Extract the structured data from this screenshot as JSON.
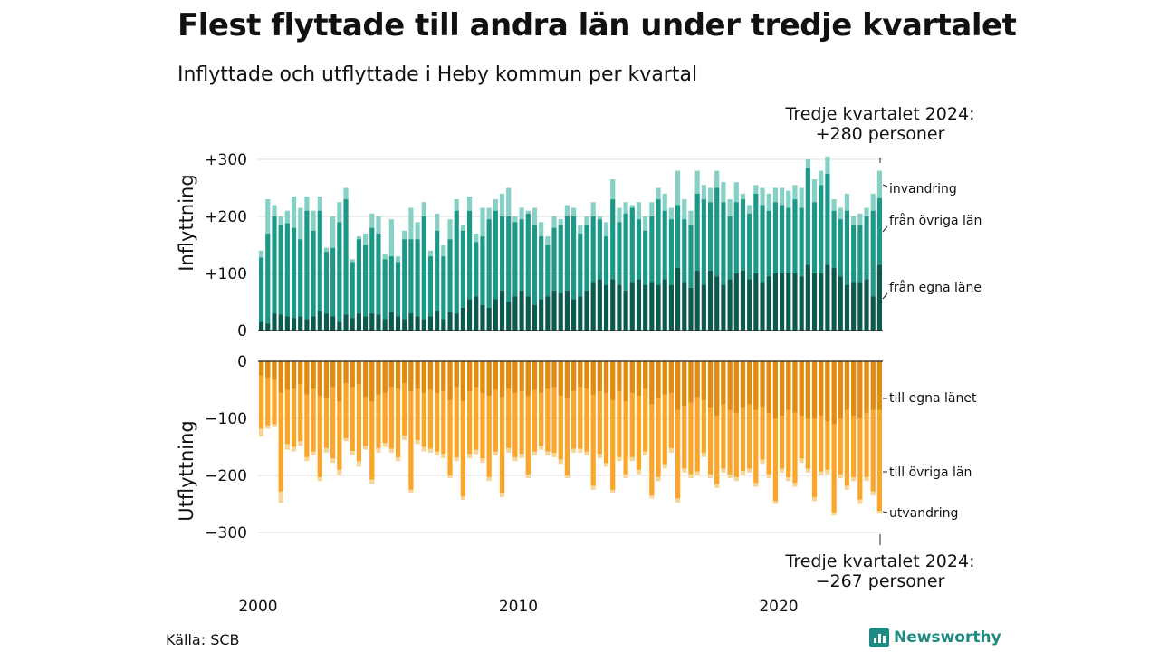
{
  "header": {
    "title": "Flest flyttade till andra län under tredje kvartalet",
    "subtitle": "Inflyttade och utflyttade i Heby kommun per kvartal"
  },
  "footer": {
    "source": "Källa: SCB",
    "brand": "Newsworthy"
  },
  "callouts": {
    "top_line1": "Tredje kvartalet 2024:",
    "top_line2": "+280 personer",
    "bottom_line1": "Tredje kvartalet 2024:",
    "bottom_line2": "−267 personer"
  },
  "chart_data": {
    "type": "bar",
    "subtype": "stacked-diverging",
    "start_year": 2000,
    "colors": {
      "in_egna": "#0c5a4e",
      "in_ovriga": "#1c9889",
      "in_invandring": "#86d0c5",
      "out_egna": "#e08c10",
      "out_ovriga": "#f9a62a",
      "out_utvandring": "#f7d497",
      "grid": "#dddddd",
      "axis": "#222222"
    },
    "x_ticks": [
      {
        "label": "2000",
        "year": 2000
      },
      {
        "label": "2010",
        "year": 2010
      },
      {
        "label": "2020",
        "year": 2020
      }
    ],
    "top_panel": {
      "ylabel": "Inflyttning",
      "ylim": [
        0,
        300
      ],
      "y_ticks": [
        {
          "value": 0,
          "label": "0"
        },
        {
          "value": 100,
          "label": "+100"
        },
        {
          "value": 200,
          "label": "+200"
        },
        {
          "value": 300,
          "label": "+300"
        }
      ],
      "series_labels": [
        "från egna läne",
        "från övriga län",
        "invandring"
      ]
    },
    "bottom_panel": {
      "ylabel": "Utflyttning",
      "ylim": [
        -300,
        0
      ],
      "y_ticks": [
        {
          "value": 0,
          "label": "0"
        },
        {
          "value": -100,
          "label": "−100"
        },
        {
          "value": -200,
          "label": "−200"
        },
        {
          "value": -300,
          "label": "−300"
        }
      ],
      "series_labels": [
        "till egna länet",
        "till övriga län",
        "utvandring"
      ]
    },
    "in_total": [
      140,
      230,
      220,
      200,
      210,
      235,
      215,
      235,
      210,
      235,
      145,
      200,
      225,
      250,
      125,
      165,
      170,
      205,
      200,
      135,
      195,
      130,
      175,
      215,
      190,
      225,
      140,
      205,
      150,
      195,
      230,
      185,
      235,
      170,
      215,
      215,
      230,
      240,
      250,
      200,
      215,
      210,
      215,
      190,
      165,
      200,
      195,
      220,
      215,
      185,
      200,
      225,
      200,
      190,
      265,
      215,
      225,
      220,
      225,
      200,
      225,
      250,
      240,
      215,
      280,
      230,
      210,
      280,
      255,
      250,
      280,
      260,
      230,
      260,
      240,
      220,
      255,
      250,
      240,
      250,
      250,
      245,
      255,
      250,
      300,
      265,
      280,
      305,
      230,
      215,
      240,
      200,
      205,
      215,
      240,
      280
    ],
    "in_ovriga": [
      128,
      170,
      200,
      185,
      188,
      180,
      160,
      210,
      175,
      210,
      138,
      145,
      190,
      230,
      120,
      160,
      150,
      180,
      170,
      125,
      130,
      120,
      160,
      160,
      160,
      200,
      130,
      175,
      130,
      160,
      210,
      175,
      210,
      155,
      165,
      195,
      210,
      200,
      200,
      190,
      195,
      205,
      185,
      165,
      150,
      180,
      185,
      200,
      200,
      170,
      185,
      200,
      195,
      165,
      230,
      190,
      205,
      215,
      195,
      175,
      200,
      230,
      210,
      195,
      220,
      195,
      185,
      240,
      230,
      225,
      250,
      225,
      200,
      225,
      230,
      205,
      240,
      220,
      210,
      225,
      220,
      215,
      230,
      215,
      285,
      225,
      255,
      275,
      210,
      195,
      210,
      185,
      185,
      200,
      210,
      232
    ],
    "in_egna": [
      15,
      12,
      30,
      28,
      25,
      22,
      25,
      20,
      25,
      35,
      30,
      25,
      15,
      28,
      22,
      30,
      25,
      30,
      28,
      20,
      32,
      25,
      20,
      30,
      25,
      20,
      25,
      35,
      20,
      32,
      30,
      40,
      55,
      60,
      45,
      40,
      55,
      70,
      50,
      60,
      70,
      60,
      45,
      55,
      60,
      70,
      65,
      70,
      55,
      60,
      70,
      85,
      90,
      80,
      90,
      80,
      70,
      85,
      90,
      80,
      85,
      80,
      90,
      80,
      110,
      85,
      75,
      105,
      80,
      105,
      95,
      80,
      90,
      100,
      105,
      90,
      100,
      85,
      95,
      100,
      100,
      100,
      100,
      95,
      115,
      100,
      100,
      115,
      110,
      95,
      80,
      85,
      85,
      90,
      60,
      115
    ],
    "out_total": [
      132,
      118,
      115,
      248,
      155,
      158,
      148,
      175,
      165,
      210,
      160,
      178,
      200,
      140,
      165,
      185,
      155,
      215,
      160,
      150,
      160,
      175,
      138,
      230,
      145,
      158,
      160,
      165,
      170,
      205,
      175,
      243,
      170,
      163,
      178,
      210,
      165,
      238,
      160,
      175,
      170,
      205,
      165,
      155,
      165,
      168,
      180,
      205,
      160,
      160,
      165,
      225,
      170,
      185,
      230,
      175,
      205,
      175,
      198,
      165,
      240,
      210,
      188,
      160,
      248,
      195,
      205,
      200,
      168,
      205,
      222,
      195,
      205,
      210,
      200,
      195,
      220,
      180,
      205,
      250,
      195,
      210,
      220,
      178,
      195,
      245,
      200,
      198,
      270,
      205,
      225,
      210,
      250,
      210,
      235,
      267
    ],
    "out_ovriga": [
      118,
      112,
      110,
      228,
      145,
      150,
      140,
      168,
      158,
      203,
      152,
      170,
      190,
      135,
      157,
      175,
      148,
      207,
      152,
      143,
      153,
      168,
      130,
      225,
      138,
      150,
      153,
      158,
      162,
      200,
      168,
      237,
      162,
      155,
      170,
      203,
      158,
      230,
      152,
      168,
      162,
      198,
      158,
      148,
      158,
      160,
      172,
      200,
      153,
      153,
      158,
      218,
      162,
      178,
      225,
      168,
      198,
      168,
      190,
      158,
      235,
      203,
      180,
      152,
      240,
      188,
      198,
      193,
      160,
      198,
      215,
      188,
      198,
      203,
      192,
      188,
      213,
      172,
      198,
      245,
      188,
      203,
      213,
      170,
      188,
      238,
      193,
      190,
      265,
      198,
      218,
      203,
      242,
      203,
      228,
      262
    ],
    "out_egna": [
      25,
      28,
      32,
      55,
      50,
      48,
      40,
      58,
      48,
      60,
      65,
      45,
      70,
      38,
      45,
      40,
      62,
      70,
      58,
      55,
      45,
      48,
      38,
      52,
      48,
      55,
      50,
      55,
      52,
      68,
      45,
      70,
      52,
      45,
      55,
      60,
      50,
      62,
      48,
      55,
      52,
      60,
      50,
      55,
      48,
      45,
      60,
      65,
      52,
      45,
      48,
      58,
      52,
      55,
      68,
      52,
      70,
      55,
      60,
      48,
      75,
      65,
      58,
      55,
      85,
      78,
      72,
      62,
      68,
      80,
      95,
      75,
      85,
      90,
      80,
      75,
      85,
      80,
      90,
      100,
      95,
      85,
      90,
      95,
      100,
      100,
      95,
      105,
      110,
      100,
      85,
      95,
      100,
      90,
      85,
      85
    ]
  }
}
